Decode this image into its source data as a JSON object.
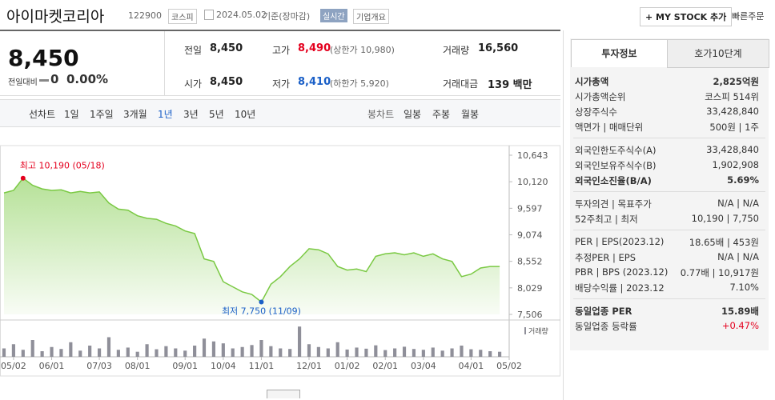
{
  "header": {
    "name": "아이마켓코리아",
    "code": "122900",
    "market": "코스피",
    "date": "2024.05.02",
    "basis": "기준(장마감)",
    "realtime": "실시간",
    "overview": "기업개요",
    "mystock": "+ MY STOCK 추가",
    "quick_order": "빠른주문"
  },
  "quote": {
    "price": "8,450",
    "change_label": "전일대비",
    "change": "0",
    "rate": "0.00%",
    "stats": [
      {
        "label": "전일",
        "value": "8,450"
      },
      {
        "label": "고가",
        "value": "8,490",
        "extra": "(상한가 10,980)",
        "color": "#e4001e"
      },
      {
        "label": "거래량",
        "value": "16,560"
      },
      {
        "label": "시가",
        "value": "8,450"
      },
      {
        "label": "저가",
        "value": "8,410",
        "extra": "(하한가 5,920)",
        "color": "#1a5fc7"
      },
      {
        "label": "거래대금",
        "value": "139 백만"
      }
    ]
  },
  "tabs": {
    "line": "선차트",
    "periods": [
      "1일",
      "1주일",
      "3개월",
      "1년",
      "3년",
      "5년",
      "10년"
    ],
    "candle": "봉차트",
    "candle_periods": [
      "일봉",
      "주봉",
      "월봉"
    ]
  },
  "chart_data": {
    "type": "line",
    "color": "#7ac943",
    "values": [
      9900,
      9950,
      10190,
      10050,
      9980,
      9950,
      9960,
      9900,
      9930,
      9900,
      9920,
      9700,
      9580,
      9560,
      9450,
      9400,
      9380,
      9300,
      9250,
      9150,
      9100,
      8600,
      8550,
      8150,
      8050,
      7950,
      7900,
      7750,
      8100,
      8250,
      8450,
      8600,
      8800,
      8780,
      8700,
      8450,
      8380,
      8400,
      8350,
      8650,
      8700,
      8720,
      8680,
      8720,
      8650,
      8700,
      8600,
      8550,
      8250,
      8300,
      8420,
      8450,
      8450
    ],
    "xlim": [
      0,
      53
    ],
    "xticks": [
      {
        "value": 1,
        "label": "05/02"
      },
      {
        "value": 5,
        "label": "06/01"
      },
      {
        "value": 10,
        "label": "07/03"
      },
      {
        "value": 14,
        "label": "08/01"
      },
      {
        "value": 19,
        "label": "09/01"
      },
      {
        "value": 23,
        "label": "10/04"
      },
      {
        "value": 27,
        "label": "11/01"
      },
      {
        "value": 32,
        "label": "12/01"
      },
      {
        "value": 36,
        "label": "01/02"
      },
      {
        "value": 40,
        "label": "02/01"
      },
      {
        "value": 44,
        "label": "03/04"
      },
      {
        "value": 49,
        "label": "04/01"
      },
      {
        "value": 53,
        "label": "05/02"
      }
    ],
    "ylim": [
      7506,
      10643
    ],
    "yticks": [
      {
        "value": 10643,
        "label": "10,643"
      },
      {
        "value": 10120,
        "label": "10,120"
      },
      {
        "value": 9597,
        "label": "9,597"
      },
      {
        "value": 9074,
        "label": "9,074"
      },
      {
        "value": 8552,
        "label": "8,552"
      },
      {
        "value": 8029,
        "label": "8,029"
      },
      {
        "value": 7506,
        "label": "7,506"
      }
    ],
    "high_label": "최고 10,190 (05/18)",
    "low_label": "최저 7,750 (11/09)",
    "volume": {
      "name": "거래량",
      "color": "#8f8f99",
      "ylim": [
        0,
        120000
      ],
      "values": [
        30000,
        45000,
        25000,
        60000,
        20000,
        35000,
        28000,
        52000,
        22000,
        40000,
        30000,
        70000,
        25000,
        33000,
        18000,
        45000,
        27000,
        38000,
        30000,
        22000,
        40000,
        65000,
        55000,
        48000,
        30000,
        35000,
        42000,
        60000,
        38000,
        30000,
        28000,
        108000,
        45000,
        35000,
        30000,
        52000,
        26000,
        33000,
        29000,
        41000,
        24000,
        30000,
        36000,
        28000,
        25000,
        33000,
        22000,
        30000,
        40000,
        27000,
        25000,
        20000,
        18000
      ]
    }
  },
  "info": {
    "tabs": [
      "투자정보",
      "호가10단계"
    ],
    "sections": [
      [
        {
          "label": "시가총액",
          "value": "2,825억원",
          "emphasis": true
        },
        {
          "label": "시가총액순위",
          "value": "코스피 514위"
        },
        {
          "label": "상장주식수",
          "value": "33,428,840"
        },
        {
          "label": "액면가 | 매매단위",
          "value": "500원 | 1주"
        }
      ],
      [
        {
          "label": "외국인한도주식수(A)",
          "value": "33,428,840"
        },
        {
          "label": "외국인보유주식수(B)",
          "value": "1,902,908"
        },
        {
          "label": "외국인소진율(B/A)",
          "value": "5.69%",
          "emphasis": true
        }
      ],
      [
        {
          "label": "투자의견 | 목표주가",
          "value": "N/A | N/A"
        },
        {
          "label": "52주최고 | 최저",
          "value": "10,190 | 7,750"
        }
      ],
      [
        {
          "label": "PER | EPS(2023.12)",
          "value": "18.65배 | 453원"
        },
        {
          "label": "추정PER | EPS",
          "value": "N/A | N/A"
        },
        {
          "label": "PBR | BPS (2023.12)",
          "value": "0.77배 | 10,917원"
        },
        {
          "label": "배당수익률 | 2023.12",
          "value": "7.10%"
        }
      ],
      [
        {
          "label": "동일업종 PER",
          "value": "15.89배",
          "emphasis": true
        },
        {
          "label": "동일업종 등락률",
          "value": "+0.47%",
          "color": "#e4001e"
        }
      ]
    ]
  }
}
